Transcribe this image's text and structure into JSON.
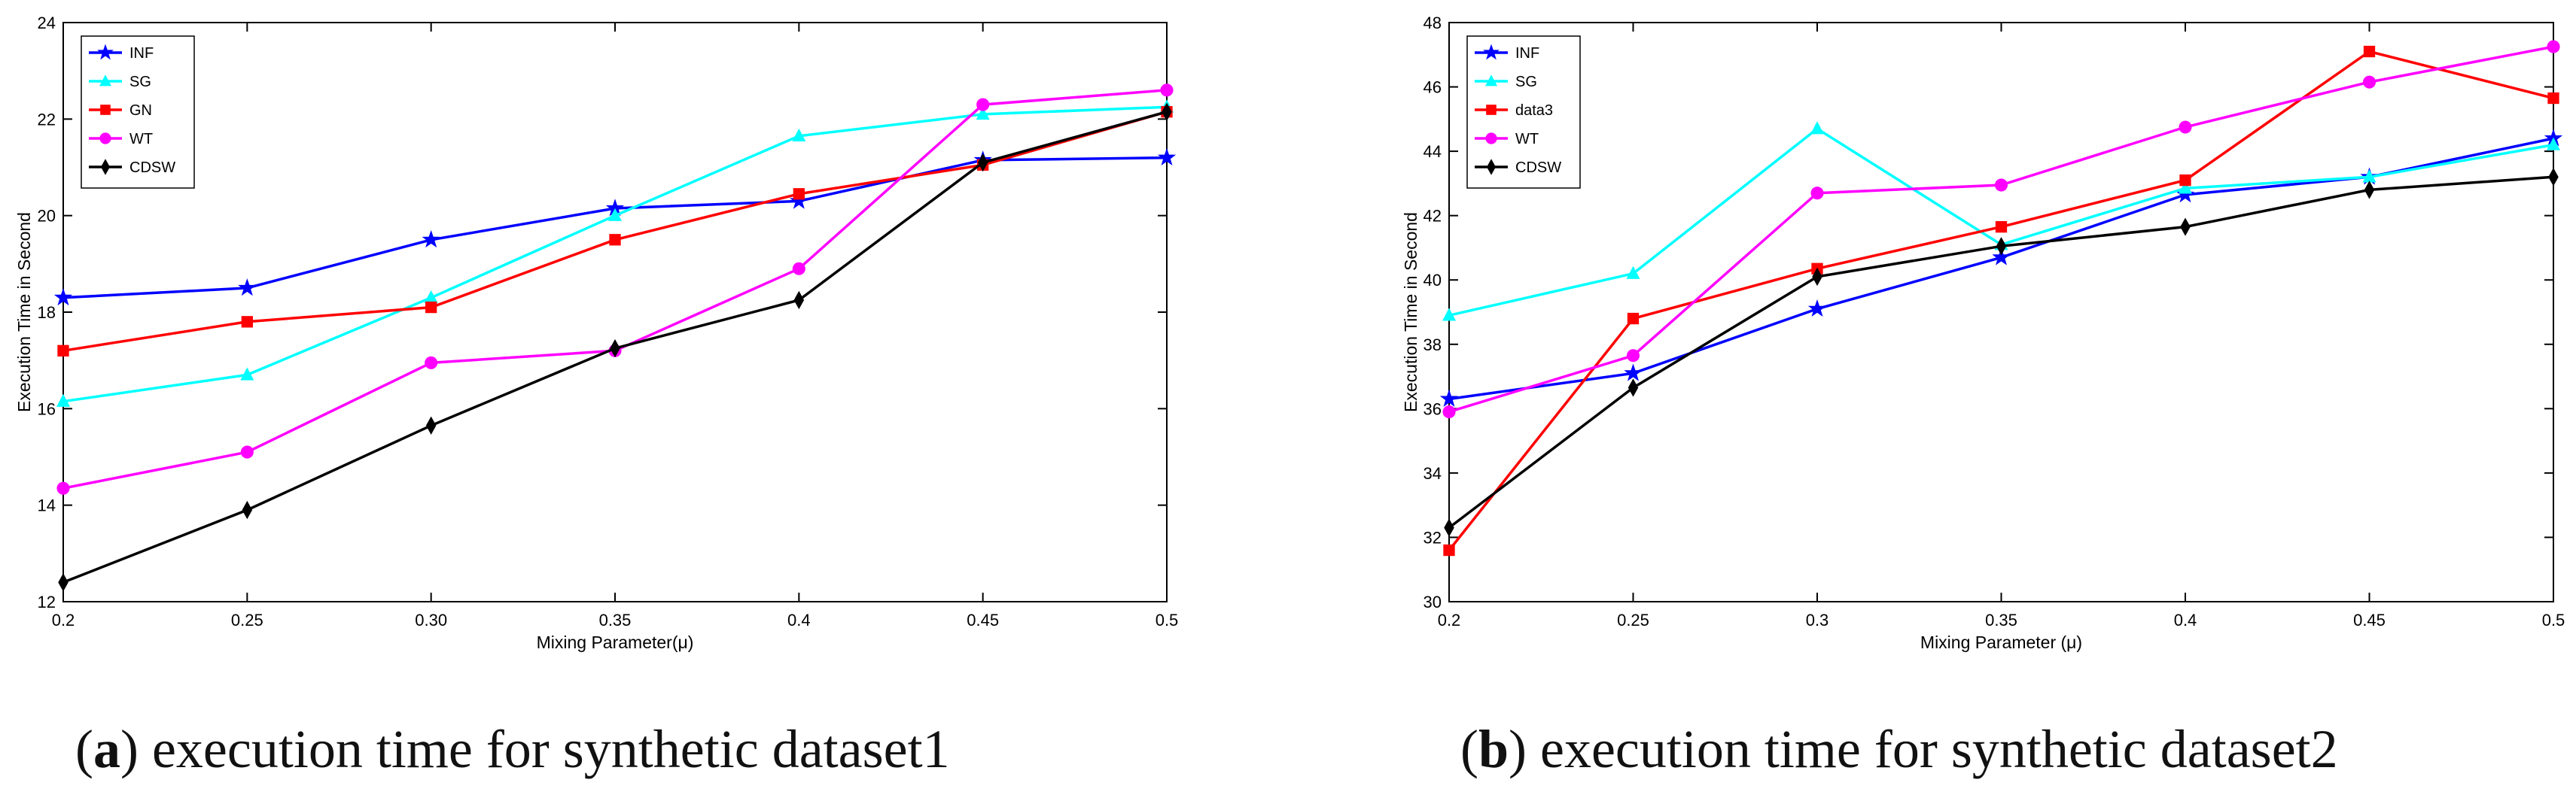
{
  "chart_data": [
    {
      "type": "line",
      "panel": "a",
      "x": [
        0.2,
        0.25,
        0.3,
        0.35,
        0.4,
        0.45,
        0.5
      ],
      "tick_labels": [
        "0.2",
        "0.25",
        "0.30",
        "0.35",
        "0.4",
        "0.45",
        "0.5"
      ],
      "xlabel": "Mixing Parameter(μ)",
      "ylabel": "Execution Time in Second",
      "ylim": [
        12,
        24
      ],
      "yticks": [
        12,
        14,
        16,
        18,
        20,
        22,
        24
      ],
      "legend_position": "top-left",
      "series": [
        {
          "name": "INF",
          "color": "#0000ff",
          "marker": "star",
          "values": [
            18.3,
            18.5,
            19.5,
            20.15,
            20.3,
            21.15,
            21.2
          ]
        },
        {
          "name": "SG",
          "color": "#00ffff",
          "marker": "triangle",
          "values": [
            16.15,
            16.7,
            18.3,
            20.0,
            21.65,
            22.1,
            22.25
          ]
        },
        {
          "name": "GN",
          "color": "#ff0000",
          "marker": "square",
          "values": [
            17.2,
            17.8,
            18.1,
            19.5,
            20.45,
            21.05,
            22.15
          ]
        },
        {
          "name": "WT",
          "color": "#ff00ff",
          "marker": "circle",
          "values": [
            14.35,
            15.1,
            16.95,
            17.2,
            18.9,
            22.3,
            22.6
          ]
        },
        {
          "name": "CDSW",
          "color": "#000000",
          "marker": "diamond",
          "values": [
            12.4,
            13.9,
            15.65,
            17.25,
            18.25,
            21.1,
            22.15
          ]
        }
      ],
      "caption_label": "a",
      "caption_text": "execution time for synthetic dataset1"
    },
    {
      "type": "line",
      "panel": "b",
      "x": [
        0.2,
        0.25,
        0.3,
        0.35,
        0.4,
        0.45,
        0.5
      ],
      "tick_labels": [
        "0.2",
        "0.25",
        "0.3",
        "0.35",
        "0.4",
        "0.45",
        "0.5"
      ],
      "xlabel": "Mixing Parameter (μ)",
      "ylabel": "Execution Time in Second",
      "ylim": [
        30,
        48
      ],
      "yticks": [
        30,
        32,
        34,
        36,
        38,
        40,
        42,
        44,
        46,
        48
      ],
      "legend_position": "top-left",
      "series": [
        {
          "name": "INF",
          "color": "#0000ff",
          "marker": "star",
          "values": [
            36.3,
            37.1,
            39.1,
            40.7,
            42.65,
            43.2,
            44.4
          ]
        },
        {
          "name": "SG",
          "color": "#00ffff",
          "marker": "triangle",
          "values": [
            38.9,
            40.2,
            44.7,
            41.1,
            42.85,
            43.2,
            44.2
          ]
        },
        {
          "name": "data3",
          "color": "#ff0000",
          "marker": "square",
          "values": [
            31.6,
            38.8,
            40.35,
            41.65,
            43.1,
            47.1,
            45.65
          ]
        },
        {
          "name": "WT",
          "color": "#ff00ff",
          "marker": "circle",
          "values": [
            35.9,
            37.65,
            42.7,
            42.95,
            44.75,
            46.15,
            47.25
          ]
        },
        {
          "name": "CDSW",
          "color": "#000000",
          "marker": "diamond",
          "values": [
            32.3,
            36.65,
            40.1,
            41.05,
            41.65,
            42.8,
            43.2
          ]
        }
      ],
      "caption_label": "b",
      "caption_text": "execution time for synthetic dataset2"
    }
  ]
}
